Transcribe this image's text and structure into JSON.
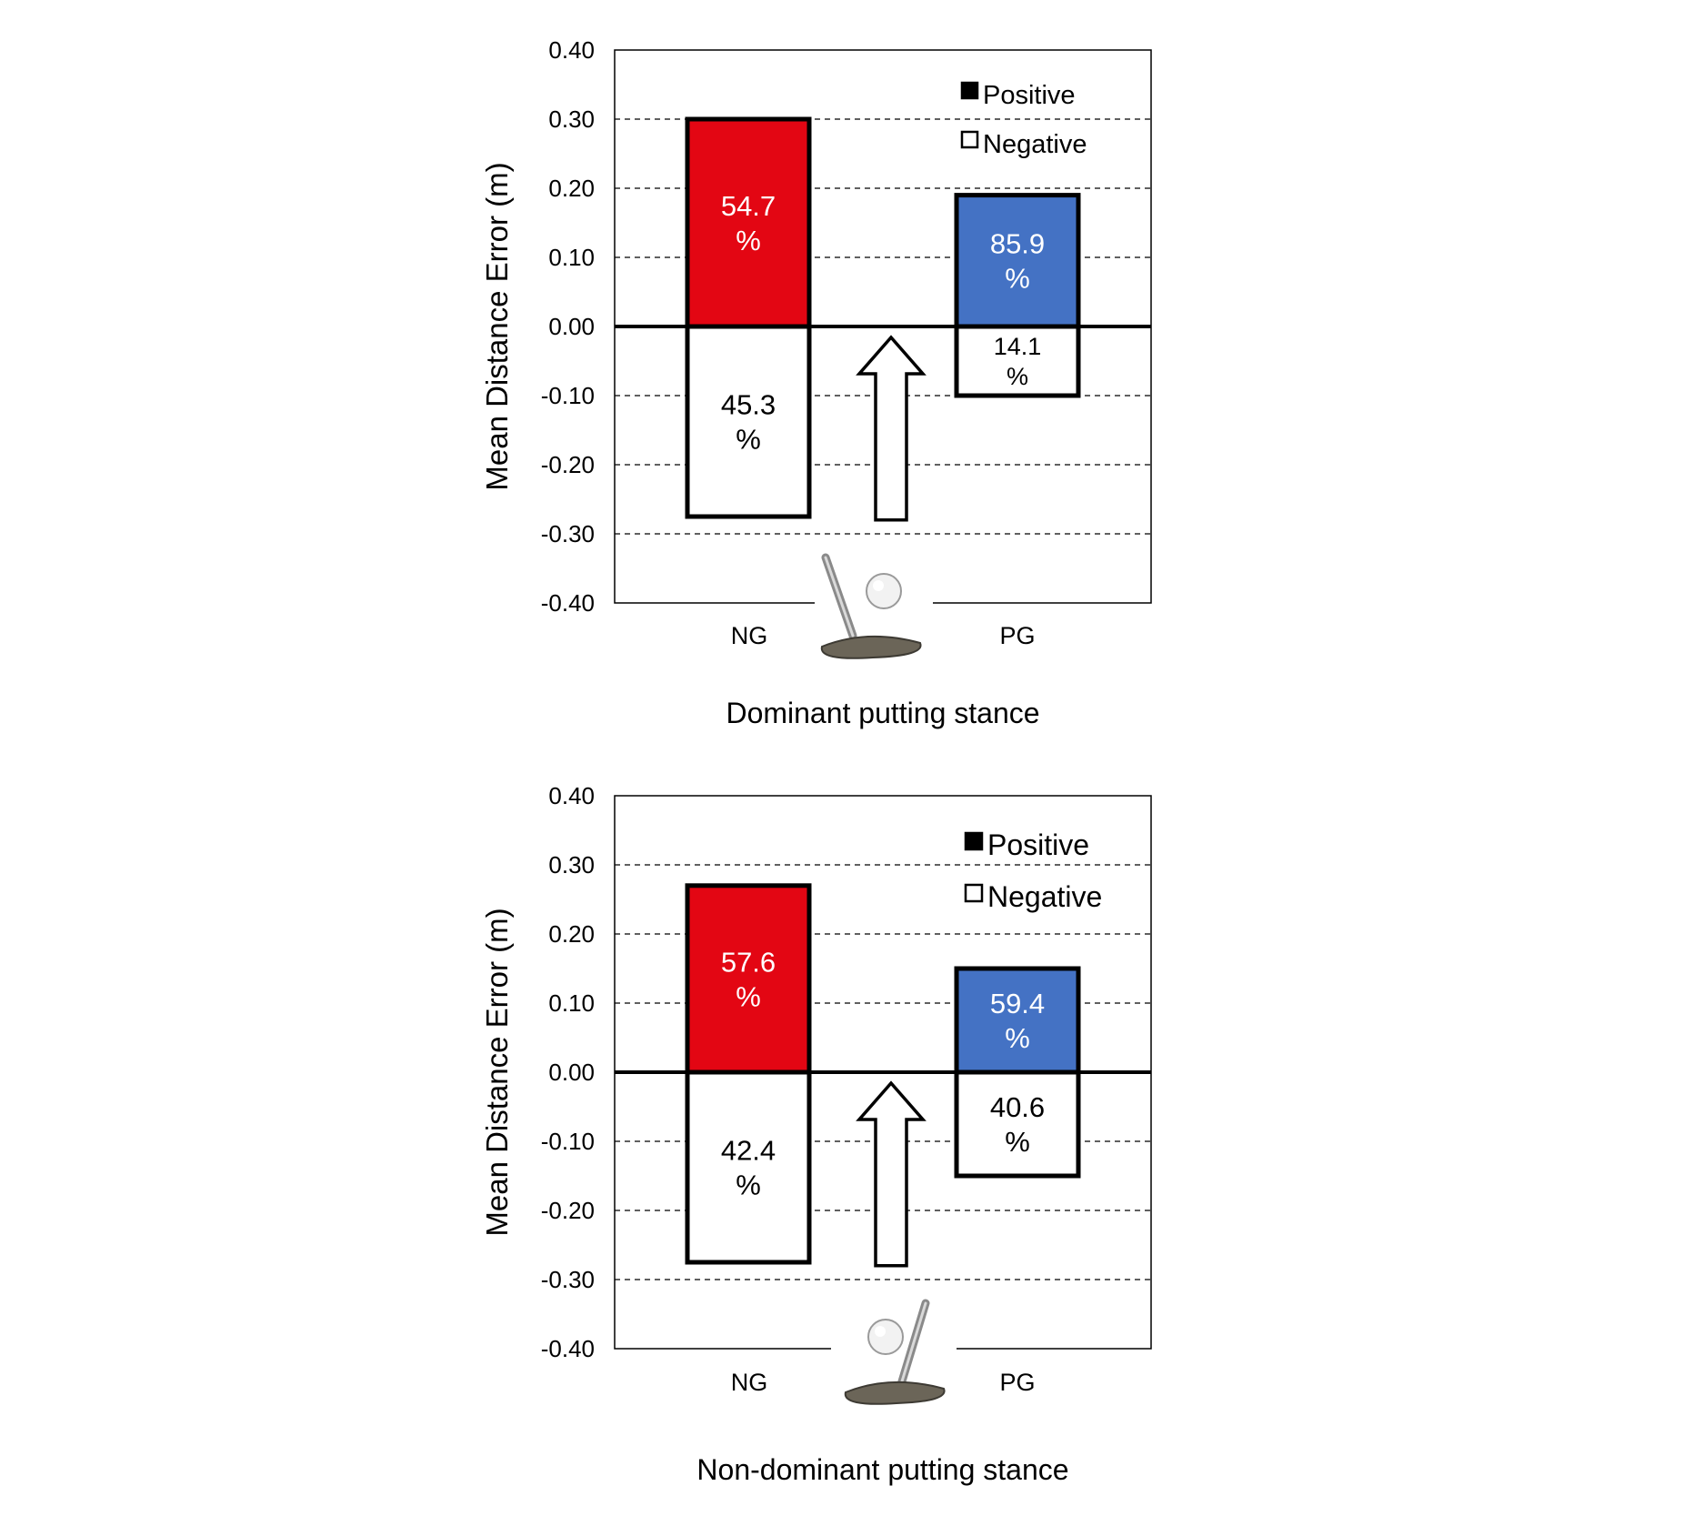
{
  "colors": {
    "ng_positive": "#E30613",
    "pg_positive": "#4472C4",
    "negative": "#FFFFFF",
    "grid": "#000000"
  },
  "chart_data": [
    {
      "type": "bar",
      "title": "Dominant putting stance",
      "ylabel": "Mean Distance Error (m)",
      "ylim": [
        -0.4,
        0.4
      ],
      "yticks": [
        "0.40",
        "0.30",
        "0.20",
        "0.10",
        "0.00",
        "-0.10",
        "-0.20",
        "-0.30",
        "-0.40"
      ],
      "categories": [
        "NG",
        "PG"
      ],
      "legend": {
        "position": "top-right",
        "entries": [
          "Positive",
          "Negative"
        ]
      },
      "series": [
        {
          "name": "Positive",
          "values": [
            0.3,
            0.19
          ],
          "labels": [
            "54.7\n%",
            "85.9\n%"
          ]
        },
        {
          "name": "Negative",
          "values": [
            -0.275,
            -0.1
          ],
          "labels": [
            "45.3\n%",
            "14.1\n%"
          ]
        }
      ],
      "icon": "putter-ball-icon",
      "annotation": "arrow-up"
    },
    {
      "type": "bar",
      "title": "Non-dominant putting stance",
      "ylabel": "Mean Distance Error (m)",
      "ylim": [
        -0.4,
        0.4
      ],
      "yticks": [
        "0.40",
        "0.30",
        "0.20",
        "0.10",
        "0.00",
        "-0.10",
        "-0.20",
        "-0.30",
        "-0.40"
      ],
      "categories": [
        "NG",
        "PG"
      ],
      "legend": {
        "position": "top-right",
        "entries": [
          "Positive",
          "Negative"
        ]
      },
      "series": [
        {
          "name": "Positive",
          "values": [
            0.27,
            0.15
          ],
          "labels": [
            "57.6\n%",
            "59.4\n%"
          ]
        },
        {
          "name": "Negative",
          "values": [
            -0.275,
            -0.15
          ],
          "labels": [
            "42.4\n%",
            "40.6\n%"
          ]
        }
      ],
      "icon": "putter-ball-icon",
      "annotation": "arrow-up"
    }
  ]
}
